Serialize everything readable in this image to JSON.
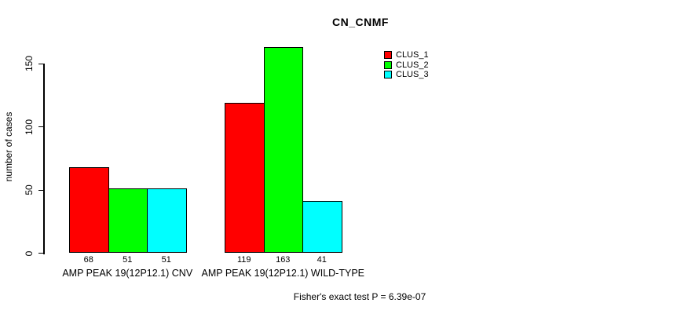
{
  "page": {
    "background": "#ffffff",
    "text_color": "#000000"
  },
  "chart_data": {
    "type": "bar",
    "title": "CN_CNMF",
    "xlabel": "",
    "ylabel": "number of cases",
    "ylim": [
      0,
      150
    ],
    "yticks": [
      0,
      50,
      100,
      150
    ],
    "grid": false,
    "categories": [
      "AMP PEAK 19(12P12.1) CNV",
      "AMP PEAK 19(12P12.1) WILD-TYPE"
    ],
    "series": [
      {
        "name": "CLUS_1",
        "color": "#ff0000",
        "values": [
          68,
          119
        ]
      },
      {
        "name": "CLUS_2",
        "color": "#00ff00",
        "values": [
          51,
          163
        ]
      },
      {
        "name": "CLUS_3",
        "color": "#00ffff",
        "values": [
          51,
          41
        ]
      }
    ],
    "bar_value_labels": [
      [
        68,
        51,
        51
      ],
      [
        119,
        163,
        41
      ]
    ],
    "legend_position": "top-right",
    "legend_entries": [
      "CLUS_1",
      "CLUS_2",
      "CLUS_3"
    ],
    "annotation": "Fisher's exact test P = 6.39e-07"
  }
}
